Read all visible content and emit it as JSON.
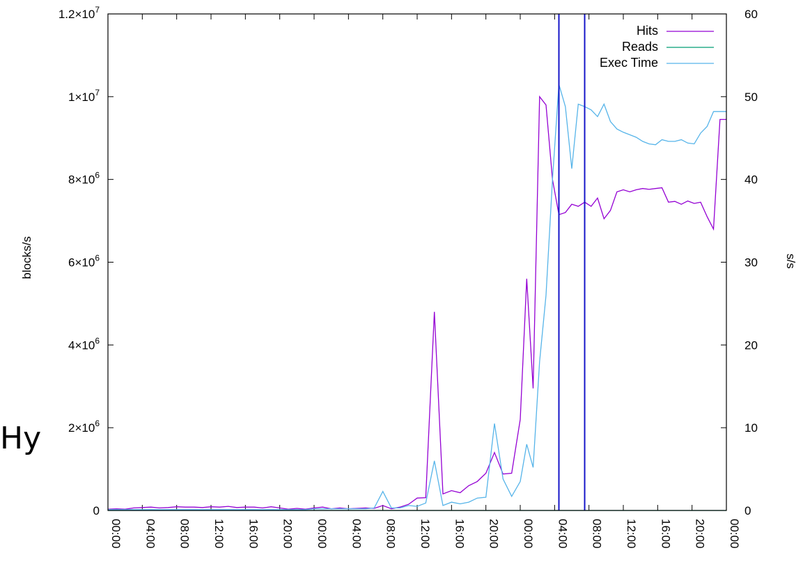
{
  "overlay_text": "Hy",
  "chart_data": {
    "type": "line",
    "title": "",
    "xlabel": "",
    "ylabel": "blocks/s",
    "y2label": "s/s",
    "xlim_hours": [
      0,
      72
    ],
    "ylim": [
      0,
      12000000
    ],
    "y2lim": [
      0,
      60
    ],
    "x_tick_labels": [
      "00:00",
      "04:00",
      "08:00",
      "12:00",
      "16:00",
      "20:00",
      "00:00",
      "04:00",
      "08:00",
      "12:00",
      "16:00",
      "20:00",
      "00:00",
      "04:00",
      "08:00",
      "12:00",
      "16:00",
      "20:00",
      "00:00"
    ],
    "y_tick_labels": [
      {
        "value": 0,
        "mantissa": "0",
        "exp": ""
      },
      {
        "value": 2000000,
        "mantissa": "2×10",
        "exp": "6"
      },
      {
        "value": 4000000,
        "mantissa": "4×10",
        "exp": "6"
      },
      {
        "value": 6000000,
        "mantissa": "6×10",
        "exp": "6"
      },
      {
        "value": 8000000,
        "mantissa": "8×10",
        "exp": "6"
      },
      {
        "value": 10000000,
        "mantissa": "1×10",
        "exp": "7"
      },
      {
        "value": 12000000,
        "mantissa": "1.2×10",
        "exp": "7"
      }
    ],
    "y2_tick_labels": [
      {
        "value": 0,
        "label": "0"
      },
      {
        "value": 10,
        "label": "10"
      },
      {
        "value": 20,
        "label": "20"
      },
      {
        "value": 30,
        "label": "30"
      },
      {
        "value": 40,
        "label": "40"
      },
      {
        "value": 50,
        "label": "50"
      },
      {
        "value": 60,
        "label": "60"
      }
    ],
    "vlines_hours": [
      52.5,
      55.5
    ],
    "legend_position": "top-right",
    "series": [
      {
        "name": "Hits",
        "color": "#9400d3",
        "axis": "y",
        "x": [
          0,
          1,
          2,
          3,
          4,
          5,
          6,
          7,
          8,
          9,
          10,
          11,
          12,
          13,
          14,
          15,
          16,
          17,
          18,
          19,
          20,
          21,
          22,
          23,
          24,
          25,
          26,
          27,
          28,
          29,
          30,
          31,
          32,
          33,
          34,
          35,
          36,
          37,
          38,
          39,
          40,
          41,
          42,
          43,
          44,
          45,
          46,
          47,
          48,
          48.75,
          49.5,
          50.25,
          51,
          51.75,
          52.5,
          53.25,
          54,
          54.75,
          55.5,
          56.25,
          57,
          57.75,
          58.5,
          59.25,
          60,
          60.75,
          61.5,
          62.25,
          63,
          63.75,
          64.5,
          65.25,
          66,
          66.75,
          67.5,
          68.25,
          69,
          69.75,
          70.5,
          71.25,
          72
        ],
        "values": [
          30000,
          40000,
          30000,
          60000,
          70000,
          80000,
          60000,
          70000,
          90000,
          80000,
          80000,
          70000,
          90000,
          80000,
          100000,
          70000,
          80000,
          80000,
          60000,
          90000,
          60000,
          30000,
          50000,
          30000,
          60000,
          80000,
          40000,
          60000,
          40000,
          50000,
          60000,
          50000,
          120000,
          40000,
          80000,
          150000,
          300000,
          310000,
          4800000,
          400000,
          480000,
          430000,
          600000,
          700000,
          900000,
          1400000,
          880000,
          900000,
          2200000,
          5600000,
          2950000,
          10000000,
          9800000,
          8000000,
          7150000,
          7200000,
          7400000,
          7350000,
          7450000,
          7350000,
          7550000,
          7050000,
          7250000,
          7700000,
          7750000,
          7700000,
          7750000,
          7780000,
          7760000,
          7780000,
          7800000,
          7450000,
          7470000,
          7400000,
          7480000,
          7420000,
          7450000,
          7100000,
          6800000,
          9450000,
          9450000
        ]
      },
      {
        "name": "Reads",
        "color": "#009e73",
        "axis": "y",
        "x": [
          0,
          72
        ],
        "values": [
          0,
          0
        ]
      },
      {
        "name": "Exec Time",
        "color": "#56b4e9",
        "axis": "y2",
        "x": [
          0,
          1,
          2,
          3,
          4,
          5,
          6,
          7,
          8,
          9,
          10,
          11,
          12,
          13,
          14,
          15,
          16,
          17,
          18,
          19,
          20,
          21,
          22,
          23,
          24,
          25,
          26,
          27,
          28,
          29,
          30,
          31,
          32,
          33,
          34,
          35,
          36,
          37,
          38,
          39,
          40,
          41,
          42,
          43,
          44,
          45,
          46,
          47,
          48,
          48.75,
          49.5,
          50.25,
          51,
          51.75,
          52.5,
          53.25,
          54,
          54.75,
          55.5,
          56.25,
          57,
          57.75,
          58.5,
          59.25,
          60,
          60.75,
          61.5,
          62.25,
          63,
          63.75,
          64.5,
          65.25,
          66,
          66.75,
          67.5,
          68.25,
          69,
          69.75,
          70.5,
          71.25,
          72
        ],
        "values": [
          0.1,
          0.1,
          0.1,
          0.1,
          0.1,
          0.1,
          0.1,
          0.1,
          0.1,
          0.1,
          0.1,
          0.1,
          0.1,
          0.1,
          0.1,
          0.1,
          0.1,
          0.1,
          0.1,
          0.1,
          0.1,
          0.1,
          0.1,
          0.1,
          0.2,
          0.2,
          0.2,
          0.2,
          0.2,
          0.2,
          0.2,
          0.3,
          2.3,
          0.3,
          0.3,
          0.6,
          0.5,
          0.9,
          6,
          0.6,
          1.0,
          0.8,
          1.0,
          1.5,
          1.6,
          10.5,
          3.8,
          1.7,
          3.5,
          8.0,
          5.2,
          18,
          26,
          40,
          51.5,
          48.8,
          41.3,
          49.1,
          48.8,
          48.4,
          47.6,
          49.1,
          47.0,
          46.1,
          45.7,
          45.4,
          45.1,
          44.6,
          44.3,
          44.2,
          44.8,
          44.6,
          44.6,
          44.8,
          44.4,
          44.3,
          45.6,
          46.4,
          48.2,
          48.2,
          48.2
        ]
      }
    ]
  }
}
